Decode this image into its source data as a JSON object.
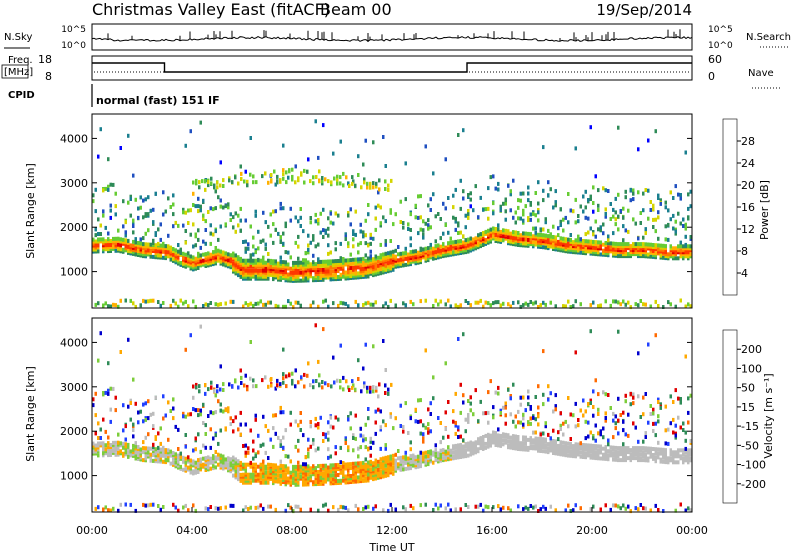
{
  "header": {
    "title": "Christmas Valley East (fitACF)",
    "beam": "Beam 00",
    "date": "19/Sep/2014"
  },
  "top_strip": {
    "nsky_label": "N.Sky",
    "nsearch_label": "N.Search",
    "freq_label_1": "Freq.",
    "freq_label_2": "[MHz]",
    "nave_label": "Nave",
    "cpid_label": "CPID",
    "cpid_text": "normal (fast) 151 IF",
    "noise_ticks_left": [
      "10^5",
      "10^0"
    ],
    "noise_ticks_right": [
      "10^5",
      "10^0"
    ],
    "freq_ticks": [
      "18",
      "8"
    ],
    "nave_ticks": [
      "60",
      "0"
    ]
  },
  "xaxis": {
    "label": "Time UT",
    "ticks": [
      "00:00",
      "04:00",
      "08:00",
      "12:00",
      "16:00",
      "20:00",
      "00:00"
    ]
  },
  "chart_data": [
    {
      "type": "heatmap",
      "name": "power",
      "ylabel": "Slant Range [km]",
      "xlim": [
        0,
        24
      ],
      "ylim": [
        180,
        4550
      ],
      "yticks": [
        "1000",
        "2000",
        "3000",
        "4000"
      ],
      "colorbar": {
        "label": "Power [dB]",
        "ticks": [
          "28",
          "24",
          "20",
          "16",
          "12",
          "8",
          "4"
        ],
        "colors": [
          "#0000ff",
          "#1f4fc0",
          "#1a7f8f",
          "#2e8b57",
          "#66cc33",
          "#d4d400",
          "#ffb000",
          "#ff7a00",
          "#ff3800",
          "#e00000"
        ]
      },
      "main_band_range_km": [
        [
          0.0,
          1600
        ],
        [
          1.0,
          1620
        ],
        [
          2.0,
          1500
        ],
        [
          3.0,
          1450
        ],
        [
          3.5,
          1300
        ],
        [
          4.0,
          1200
        ],
        [
          5.0,
          1350
        ],
        [
          5.5,
          1250
        ],
        [
          6.0,
          1050
        ],
        [
          7.0,
          1050
        ],
        [
          8.0,
          1000
        ],
        [
          9.0,
          1020
        ],
        [
          10.0,
          1050
        ],
        [
          11.0,
          1100
        ],
        [
          12.0,
          1250
        ],
        [
          13.0,
          1350
        ],
        [
          14.0,
          1500
        ],
        [
          15.0,
          1600
        ],
        [
          16.0,
          1850
        ],
        [
          17.0,
          1750
        ],
        [
          18.0,
          1700
        ],
        [
          19.0,
          1600
        ],
        [
          20.0,
          1550
        ],
        [
          21.0,
          1500
        ],
        [
          22.0,
          1500
        ],
        [
          23.0,
          1450
        ],
        [
          24.0,
          1450
        ]
      ]
    },
    {
      "type": "heatmap",
      "name": "velocity",
      "ylabel": "Slant Range [km]",
      "xlim": [
        0,
        24
      ],
      "ylim": [
        180,
        4550
      ],
      "yticks": [
        "1000",
        "2000",
        "3000",
        "4000"
      ],
      "colorbar": {
        "label": "Velocity [m s⁻¹]",
        "ticks": [
          "200",
          "100",
          "50",
          "15",
          "-15",
          "-50",
          "-100",
          "-200"
        ],
        "colors": [
          "#0000cc",
          "#2040ff",
          "#2e8b57",
          "#7ccd3a",
          "#bcbcbc",
          "#ffa800",
          "#ff6a00",
          "#e00000"
        ]
      }
    }
  ]
}
